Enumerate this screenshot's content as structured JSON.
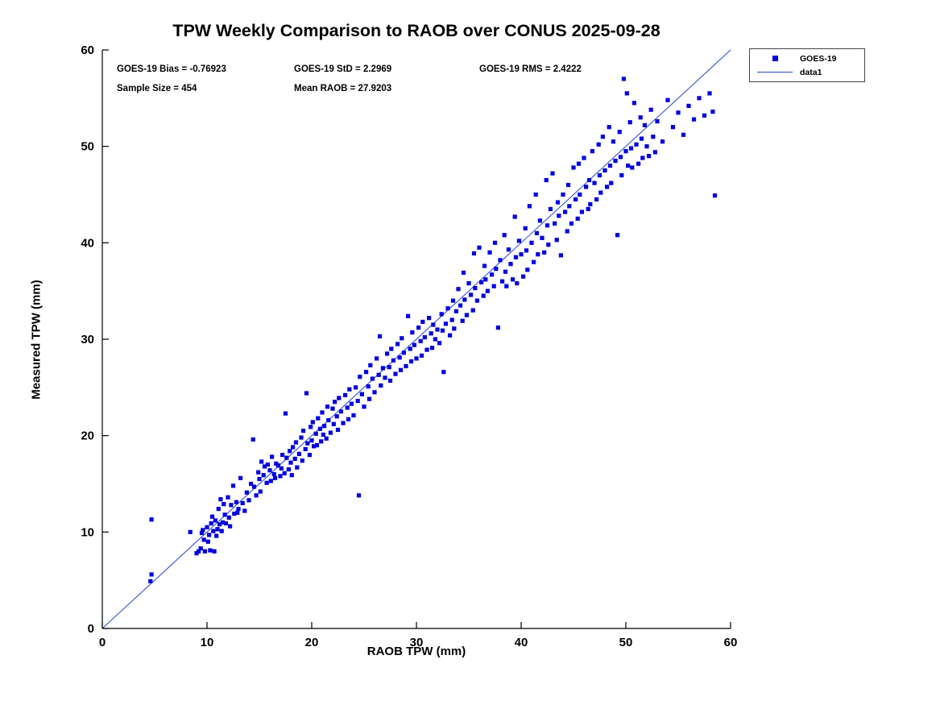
{
  "title": "TPW Weekly Comparison to RAOB over CONUS 2025-09-28",
  "annotations": {
    "bias": "GOES-19 Bias = -0.76923",
    "std": "GOES-19 StD = 2.2969",
    "rms": "GOES-19 RMS = 2.4222",
    "sample": "Sample Size = 454",
    "mean_raob": "Mean RAOB = 27.9203"
  },
  "axes": {
    "xlabel": "RAOB TPW (mm)",
    "ylabel": "Measured TPW (mm)"
  },
  "legend": {
    "items": [
      {
        "label": "GOES-19",
        "type": "marker"
      },
      {
        "label": "data1",
        "type": "line"
      }
    ]
  },
  "chart_data": {
    "type": "scatter",
    "title": "TPW Weekly Comparison to RAOB over CONUS 2025-09-28",
    "xlabel": "RAOB TPW (mm)",
    "ylabel": "Measured TPW (mm)",
    "xlim": [
      0,
      60
    ],
    "ylim": [
      0,
      60
    ],
    "xticks": [
      0,
      10,
      20,
      30,
      40,
      50,
      60
    ],
    "yticks": [
      0,
      10,
      20,
      30,
      40,
      50,
      60
    ],
    "grid": false,
    "legend_position": "outside-top-right",
    "marker_color": "#0000e0",
    "line_color": "#2244cc",
    "stats": {
      "bias": -0.76923,
      "std": 2.2969,
      "rms": 2.4222,
      "sample_size": 454,
      "mean_raob": 27.9203
    },
    "reference_line": {
      "name": "data1",
      "from": [
        0,
        0
      ],
      "to": [
        60,
        60
      ]
    },
    "series": [
      {
        "name": "GOES-19",
        "points": [
          [
            4.6,
            4.9
          ],
          [
            4.7,
            5.6
          ],
          [
            4.7,
            11.3
          ],
          [
            8.4,
            10.0
          ],
          [
            9.0,
            7.8
          ],
          [
            9.2,
            8.0
          ],
          [
            9.4,
            8.3
          ],
          [
            9.5,
            9.9
          ],
          [
            9.6,
            10.2
          ],
          [
            9.7,
            9.2
          ],
          [
            9.8,
            8.0
          ],
          [
            10.0,
            10.5
          ],
          [
            10.1,
            9.0
          ],
          [
            10.2,
            9.7
          ],
          [
            10.3,
            8.1
          ],
          [
            10.4,
            10.9
          ],
          [
            10.5,
            11.6
          ],
          [
            10.6,
            10.1
          ],
          [
            10.7,
            8.0
          ],
          [
            10.8,
            11.2
          ],
          [
            10.9,
            9.6
          ],
          [
            11.0,
            10.3
          ],
          [
            11.1,
            12.4
          ],
          [
            11.2,
            10.8
          ],
          [
            11.3,
            13.4
          ],
          [
            11.4,
            10.1
          ],
          [
            11.5,
            11.0
          ],
          [
            11.6,
            12.9
          ],
          [
            11.7,
            11.8
          ],
          [
            11.8,
            10.9
          ],
          [
            12.0,
            13.6
          ],
          [
            12.1,
            11.5
          ],
          [
            12.2,
            10.6
          ],
          [
            12.3,
            12.8
          ],
          [
            12.5,
            14.8
          ],
          [
            12.6,
            11.9
          ],
          [
            12.8,
            13.1
          ],
          [
            12.9,
            12.0
          ],
          [
            13.0,
            12.4
          ],
          [
            13.2,
            15.6
          ],
          [
            13.4,
            13.0
          ],
          [
            13.6,
            12.2
          ],
          [
            13.8,
            14.1
          ],
          [
            14.0,
            13.3
          ],
          [
            14.2,
            15.0
          ],
          [
            14.4,
            19.6
          ],
          [
            14.5,
            14.7
          ],
          [
            14.7,
            13.8
          ],
          [
            14.9,
            16.2
          ],
          [
            15.0,
            15.5
          ],
          [
            15.1,
            14.2
          ],
          [
            15.2,
            17.3
          ],
          [
            15.4,
            15.9
          ],
          [
            15.5,
            16.8
          ],
          [
            15.7,
            15.1
          ],
          [
            15.8,
            17.0
          ],
          [
            16.0,
            16.4
          ],
          [
            16.1,
            15.3
          ],
          [
            16.2,
            17.8
          ],
          [
            16.4,
            16.0
          ],
          [
            16.5,
            15.6
          ],
          [
            16.6,
            17.1
          ],
          [
            16.8,
            16.9
          ],
          [
            17.0,
            15.8
          ],
          [
            17.1,
            16.6
          ],
          [
            17.2,
            18.0
          ],
          [
            17.4,
            16.1
          ],
          [
            17.5,
            22.3
          ],
          [
            17.6,
            17.7
          ],
          [
            17.8,
            16.5
          ],
          [
            17.9,
            18.4
          ],
          [
            18.0,
            17.2
          ],
          [
            18.1,
            15.9
          ],
          [
            18.2,
            18.8
          ],
          [
            18.4,
            17.6
          ],
          [
            18.5,
            19.3
          ],
          [
            18.6,
            16.7
          ],
          [
            18.8,
            18.1
          ],
          [
            19.0,
            19.8
          ],
          [
            19.1,
            17.4
          ],
          [
            19.2,
            20.5
          ],
          [
            19.4,
            18.6
          ],
          [
            19.5,
            24.4
          ],
          [
            19.6,
            19.2
          ],
          [
            19.8,
            18.0
          ],
          [
            19.9,
            20.9
          ],
          [
            20.0,
            19.5
          ],
          [
            20.1,
            21.4
          ],
          [
            20.2,
            18.9
          ],
          [
            20.4,
            20.2
          ],
          [
            20.5,
            19.0
          ],
          [
            20.6,
            21.8
          ],
          [
            20.8,
            20.7
          ],
          [
            20.9,
            19.4
          ],
          [
            21.0,
            22.4
          ],
          [
            21.1,
            20.1
          ],
          [
            21.2,
            21.0
          ],
          [
            21.4,
            19.7
          ],
          [
            21.5,
            23.0
          ],
          [
            21.6,
            21.6
          ],
          [
            21.8,
            20.3
          ],
          [
            22.0,
            22.8
          ],
          [
            22.1,
            21.2
          ],
          [
            22.2,
            23.5
          ],
          [
            22.4,
            22.0
          ],
          [
            22.5,
            20.6
          ],
          [
            22.6,
            23.9
          ],
          [
            22.8,
            22.5
          ],
          [
            23.0,
            21.3
          ],
          [
            23.2,
            24.2
          ],
          [
            23.4,
            22.9
          ],
          [
            23.5,
            21.7
          ],
          [
            23.6,
            24.8
          ],
          [
            23.8,
            23.3
          ],
          [
            24.0,
            22.1
          ],
          [
            24.2,
            25.0
          ],
          [
            24.4,
            23.6
          ],
          [
            24.5,
            13.8
          ],
          [
            24.6,
            26.1
          ],
          [
            24.8,
            24.3
          ],
          [
            25.0,
            23.0
          ],
          [
            25.2,
            26.6
          ],
          [
            25.4,
            25.1
          ],
          [
            25.5,
            23.8
          ],
          [
            25.6,
            27.3
          ],
          [
            25.8,
            25.9
          ],
          [
            26.0,
            24.5
          ],
          [
            26.2,
            28.0
          ],
          [
            26.4,
            26.3
          ],
          [
            26.5,
            30.3
          ],
          [
            26.6,
            25.2
          ],
          [
            26.8,
            27.0
          ],
          [
            27.0,
            26.0
          ],
          [
            27.2,
            28.5
          ],
          [
            27.4,
            27.1
          ],
          [
            27.5,
            25.7
          ],
          [
            27.6,
            29.0
          ],
          [
            27.8,
            27.8
          ],
          [
            28.0,
            26.4
          ],
          [
            28.2,
            29.5
          ],
          [
            28.4,
            28.1
          ],
          [
            28.5,
            26.8
          ],
          [
            28.6,
            30.1
          ],
          [
            28.8,
            28.6
          ],
          [
            29.0,
            27.2
          ],
          [
            29.2,
            32.4
          ],
          [
            29.4,
            29.0
          ],
          [
            29.5,
            27.7
          ],
          [
            29.6,
            30.7
          ],
          [
            29.8,
            29.4
          ],
          [
            30.0,
            28.0
          ],
          [
            30.2,
            31.2
          ],
          [
            30.4,
            29.8
          ],
          [
            30.5,
            28.3
          ],
          [
            30.6,
            31.8
          ],
          [
            30.8,
            30.2
          ],
          [
            31.0,
            28.9
          ],
          [
            31.2,
            32.2
          ],
          [
            31.4,
            30.6
          ],
          [
            31.5,
            29.1
          ],
          [
            31.6,
            31.5
          ],
          [
            31.8,
            30.0
          ],
          [
            32.0,
            31.0
          ],
          [
            32.2,
            29.6
          ],
          [
            32.4,
            32.6
          ],
          [
            32.5,
            30.9
          ],
          [
            32.6,
            26.6
          ],
          [
            32.8,
            31.6
          ],
          [
            33.0,
            33.2
          ],
          [
            33.2,
            30.4
          ],
          [
            33.4,
            32.0
          ],
          [
            33.5,
            34.0
          ],
          [
            33.6,
            31.1
          ],
          [
            33.8,
            32.9
          ],
          [
            34.0,
            35.2
          ],
          [
            34.2,
            33.5
          ],
          [
            34.4,
            31.9
          ],
          [
            34.5,
            36.9
          ],
          [
            34.6,
            34.1
          ],
          [
            34.8,
            32.5
          ],
          [
            35.0,
            35.8
          ],
          [
            35.2,
            34.6
          ],
          [
            35.4,
            33.0
          ],
          [
            35.5,
            38.9
          ],
          [
            35.6,
            35.3
          ],
          [
            35.8,
            34.0
          ],
          [
            36.0,
            39.5
          ],
          [
            36.2,
            35.9
          ],
          [
            36.4,
            34.5
          ],
          [
            36.5,
            37.6
          ],
          [
            36.6,
            36.2
          ],
          [
            36.8,
            35.0
          ],
          [
            37.0,
            39.0
          ],
          [
            37.2,
            36.7
          ],
          [
            37.4,
            35.5
          ],
          [
            37.5,
            40.0
          ],
          [
            37.6,
            37.3
          ],
          [
            37.8,
            31.2
          ],
          [
            38.0,
            38.2
          ],
          [
            38.2,
            36.0
          ],
          [
            38.4,
            40.8
          ],
          [
            38.5,
            37.0
          ],
          [
            38.6,
            35.5
          ],
          [
            38.8,
            39.3
          ],
          [
            39.0,
            37.8
          ],
          [
            39.2,
            36.2
          ],
          [
            39.4,
            42.7
          ],
          [
            39.5,
            38.5
          ],
          [
            39.6,
            35.8
          ],
          [
            39.8,
            40.2
          ],
          [
            40.0,
            38.8
          ],
          [
            40.2,
            36.5
          ],
          [
            40.4,
            41.5
          ],
          [
            40.5,
            39.2
          ],
          [
            40.6,
            37.2
          ],
          [
            40.8,
            43.8
          ],
          [
            41.0,
            40.0
          ],
          [
            41.2,
            38.0
          ],
          [
            41.4,
            45.0
          ],
          [
            41.5,
            41.0
          ],
          [
            41.6,
            38.8
          ],
          [
            41.8,
            42.3
          ],
          [
            42.0,
            40.5
          ],
          [
            42.2,
            39.0
          ],
          [
            42.4,
            46.5
          ],
          [
            42.5,
            41.8
          ],
          [
            42.6,
            39.8
          ],
          [
            42.8,
            43.5
          ],
          [
            43.0,
            47.2
          ],
          [
            43.2,
            42.0
          ],
          [
            43.4,
            40.3
          ],
          [
            43.5,
            44.2
          ],
          [
            43.6,
            42.8
          ],
          [
            43.8,
            38.7
          ],
          [
            44.0,
            45.0
          ],
          [
            44.2,
            43.2
          ],
          [
            44.4,
            41.2
          ],
          [
            44.5,
            46.0
          ],
          [
            44.6,
            43.8
          ],
          [
            44.8,
            42.0
          ],
          [
            45.0,
            47.8
          ],
          [
            45.2,
            44.5
          ],
          [
            45.4,
            42.5
          ],
          [
            45.5,
            48.2
          ],
          [
            45.6,
            45.0
          ],
          [
            45.8,
            43.2
          ],
          [
            46.0,
            48.8
          ],
          [
            46.2,
            45.8
          ],
          [
            46.4,
            43.5
          ],
          [
            46.5,
            46.5
          ],
          [
            46.6,
            44.0
          ],
          [
            46.8,
            49.5
          ],
          [
            47.0,
            46.2
          ],
          [
            47.2,
            44.5
          ],
          [
            47.4,
            50.2
          ],
          [
            47.5,
            47.0
          ],
          [
            47.6,
            45.2
          ],
          [
            47.8,
            51.0
          ],
          [
            48.0,
            47.5
          ],
          [
            48.2,
            45.8
          ],
          [
            48.4,
            52.0
          ],
          [
            48.5,
            48.0
          ],
          [
            48.6,
            46.2
          ],
          [
            48.8,
            50.5
          ],
          [
            49.0,
            48.5
          ],
          [
            49.2,
            40.8
          ],
          [
            49.4,
            51.5
          ],
          [
            49.5,
            48.9
          ],
          [
            49.6,
            47.0
          ],
          [
            49.8,
            57.0
          ],
          [
            50.0,
            49.5
          ],
          [
            50.1,
            55.5
          ],
          [
            50.2,
            48.0
          ],
          [
            50.4,
            52.5
          ],
          [
            50.5,
            49.8
          ],
          [
            50.6,
            47.8
          ],
          [
            50.8,
            54.5
          ],
          [
            51.0,
            50.2
          ],
          [
            51.2,
            48.2
          ],
          [
            51.4,
            53.0
          ],
          [
            51.5,
            50.8
          ],
          [
            51.6,
            48.8
          ],
          [
            51.8,
            52.2
          ],
          [
            52.0,
            50.0
          ],
          [
            52.2,
            49.0
          ],
          [
            52.4,
            53.8
          ],
          [
            52.6,
            51.0
          ],
          [
            52.8,
            49.4
          ],
          [
            53.0,
            52.6
          ],
          [
            53.5,
            50.5
          ],
          [
            54.0,
            54.8
          ],
          [
            54.5,
            52.0
          ],
          [
            55.0,
            53.5
          ],
          [
            55.5,
            51.2
          ],
          [
            56.0,
            54.2
          ],
          [
            56.5,
            52.8
          ],
          [
            57.0,
            55.0
          ],
          [
            57.5,
            53.2
          ],
          [
            58.0,
            55.5
          ],
          [
            58.3,
            53.6
          ],
          [
            58.5,
            44.9
          ]
        ]
      }
    ]
  }
}
